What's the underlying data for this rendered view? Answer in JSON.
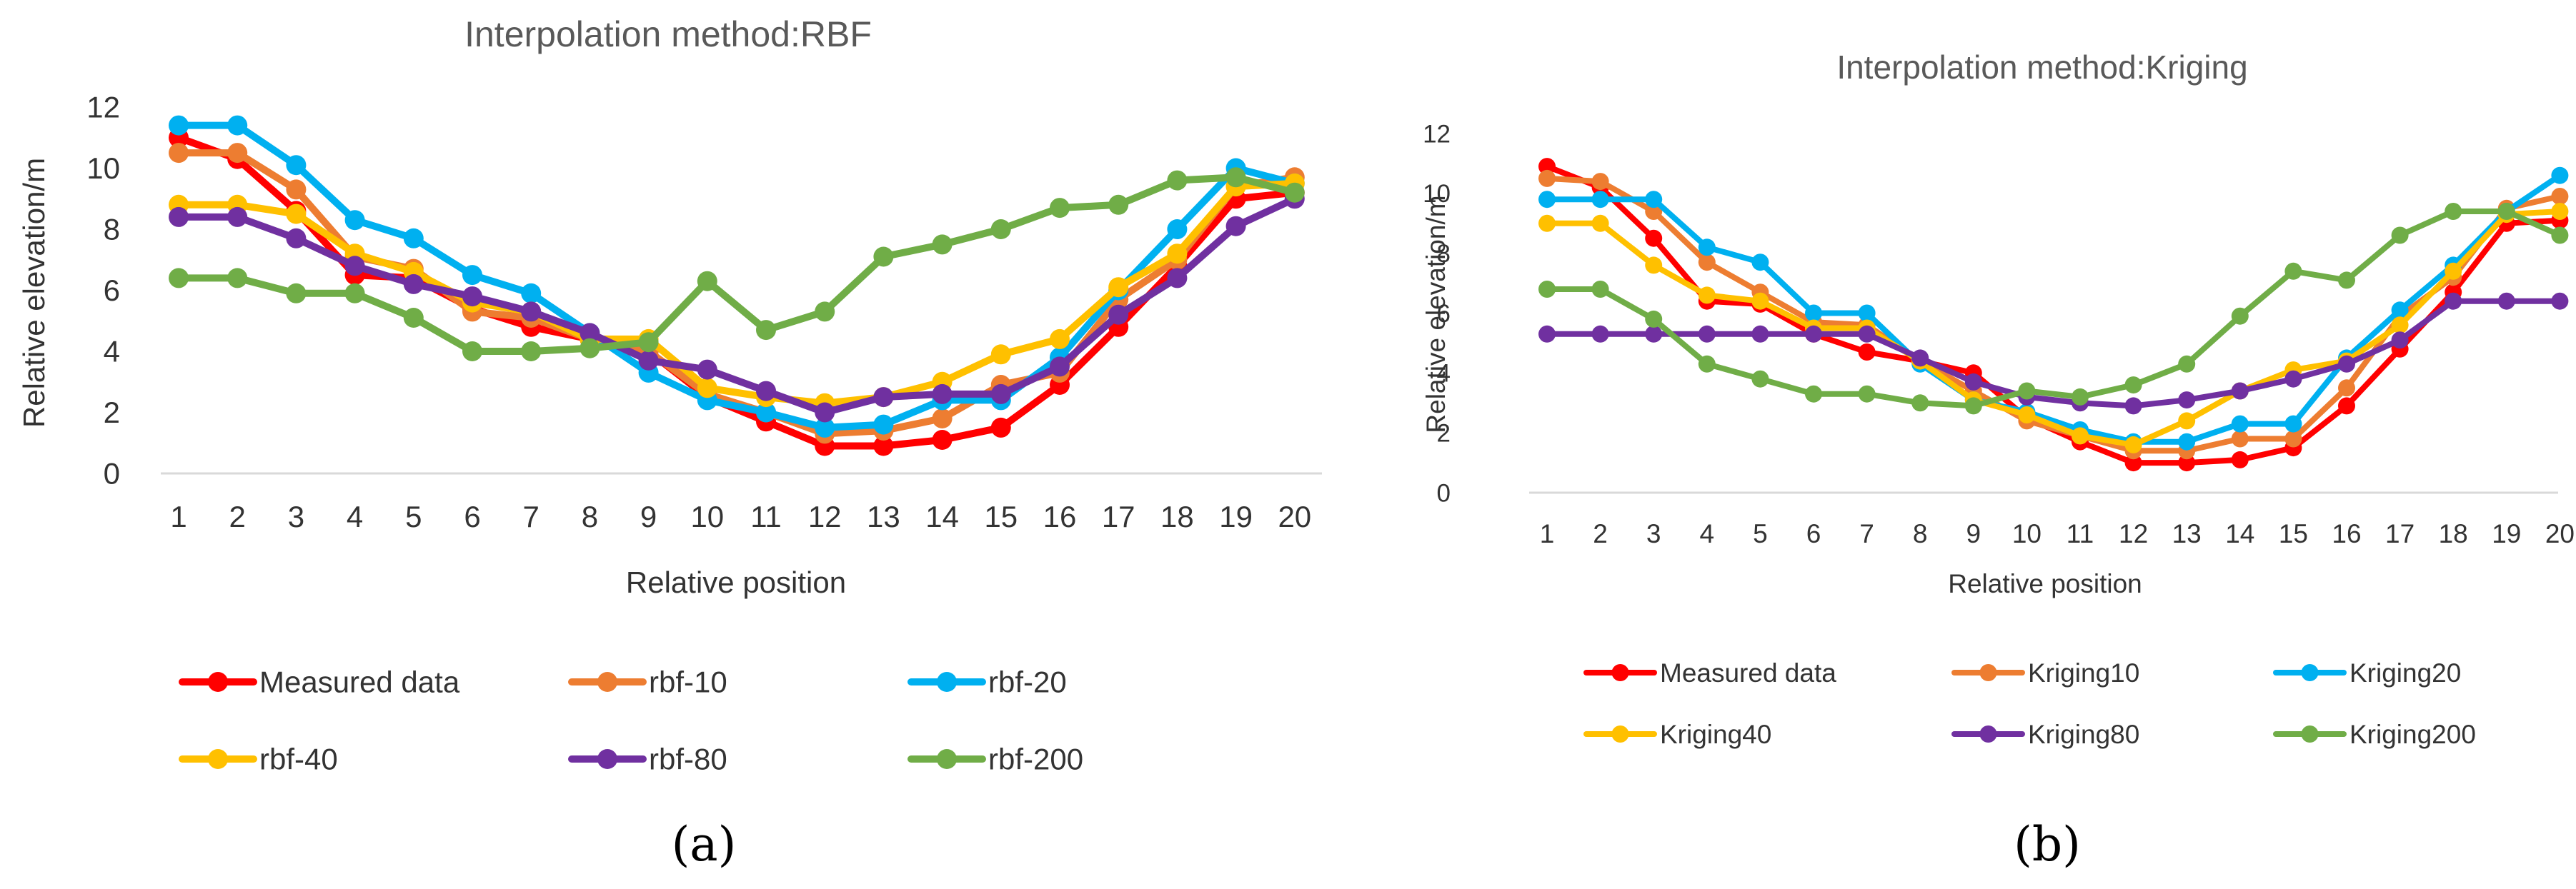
{
  "chart_data": [
    {
      "type": "line",
      "title": "Interpolation method:RBF",
      "xlabel": "Relative position",
      "ylabel": "Relative elevation/m",
      "ylim": [
        0,
        12
      ],
      "yticks": [
        "0",
        "2",
        "4",
        "6",
        "8",
        "10",
        "12"
      ],
      "categories": [
        "1",
        "2",
        "3",
        "4",
        "5",
        "6",
        "7",
        "8",
        "9",
        "10",
        "11",
        "12",
        "13",
        "14",
        "15",
        "16",
        "17",
        "18",
        "19",
        "20"
      ],
      "grid": false,
      "legend": "bottom",
      "panel_label": "(a)",
      "series": [
        {
          "name": "Measured data",
          "color": "#FF0000",
          "values": [
            11.0,
            10.3,
            8.6,
            6.5,
            6.4,
            5.4,
            4.8,
            4.4,
            4.0,
            2.5,
            1.7,
            0.9,
            0.9,
            1.1,
            1.5,
            2.9,
            4.8,
            6.8,
            9.0,
            9.2
          ]
        },
        {
          "name": "rbf-10",
          "color": "#ED7D31",
          "values": [
            10.5,
            10.5,
            9.3,
            7.1,
            6.7,
            5.3,
            5.1,
            4.4,
            4.0,
            2.6,
            2.0,
            1.3,
            1.4,
            1.8,
            2.9,
            3.3,
            5.7,
            7.0,
            9.4,
            9.7
          ]
        },
        {
          "name": "rbf-20",
          "color": "#00B0F0",
          "values": [
            11.4,
            11.4,
            10.1,
            8.3,
            7.7,
            6.5,
            5.9,
            4.6,
            3.3,
            2.4,
            2.0,
            1.5,
            1.6,
            2.4,
            2.4,
            3.8,
            6.0,
            8.0,
            10.0,
            9.5
          ]
        },
        {
          "name": "rbf-40",
          "color": "#FFC000",
          "values": [
            8.8,
            8.8,
            8.5,
            7.2,
            6.6,
            5.6,
            5.3,
            4.4,
            4.4,
            2.8,
            2.5,
            2.3,
            2.5,
            3.0,
            3.9,
            4.4,
            6.1,
            7.2,
            9.4,
            9.5
          ]
        },
        {
          "name": "rbf-80",
          "color": "#7030A0",
          "values": [
            8.4,
            8.4,
            7.7,
            6.8,
            6.2,
            5.8,
            5.3,
            4.6,
            3.7,
            3.4,
            2.7,
            2.0,
            2.5,
            2.6,
            2.6,
            3.5,
            5.2,
            6.4,
            8.1,
            9.0
          ]
        },
        {
          "name": "rbf-200",
          "color": "#70AD47",
          "values": [
            6.4,
            6.4,
            5.9,
            5.9,
            5.1,
            4.0,
            4.0,
            4.1,
            4.3,
            6.3,
            4.7,
            5.3,
            7.1,
            7.5,
            8.0,
            8.7,
            8.8,
            9.6,
            9.7,
            9.2
          ]
        }
      ]
    },
    {
      "type": "line",
      "title": "Interpolation method:Kriging",
      "xlabel": "Relative position",
      "ylabel": "Relative elevation/m",
      "ylim": [
        0,
        12
      ],
      "yticks": [
        "0",
        "2",
        "4",
        "6",
        "8",
        "10",
        "12"
      ],
      "categories": [
        "1",
        "2",
        "3",
        "4",
        "5",
        "6",
        "7",
        "8",
        "9",
        "10",
        "11",
        "12",
        "13",
        "14",
        "15",
        "16",
        "17",
        "18",
        "19",
        "20"
      ],
      "grid": false,
      "legend": "bottom",
      "panel_label": "(b)",
      "series": [
        {
          "name": "Measured data",
          "color": "#FF0000",
          "values": [
            10.9,
            10.2,
            8.5,
            6.4,
            6.3,
            5.3,
            4.7,
            4.4,
            4.0,
            2.5,
            1.7,
            1.0,
            1.0,
            1.1,
            1.5,
            2.9,
            4.8,
            6.7,
            9.0,
            9.1
          ]
        },
        {
          "name": "Kriging10",
          "color": "#ED7D31",
          "values": [
            10.5,
            10.4,
            9.4,
            7.7,
            6.7,
            5.7,
            5.6,
            4.4,
            3.4,
            2.4,
            1.9,
            1.4,
            1.4,
            1.8,
            1.8,
            3.5,
            5.9,
            7.2,
            9.5,
            9.9
          ]
        },
        {
          "name": "Kriging20",
          "color": "#00B0F0",
          "values": [
            9.8,
            9.8,
            9.8,
            8.2,
            7.7,
            6.0,
            6.0,
            4.3,
            3.1,
            2.7,
            2.1,
            1.7,
            1.7,
            2.3,
            2.3,
            4.5,
            6.1,
            7.6,
            9.4,
            10.6
          ]
        },
        {
          "name": "Kriging40",
          "color": "#FFC000",
          "values": [
            9.0,
            9.0,
            7.6,
            6.6,
            6.4,
            5.5,
            5.5,
            4.4,
            3.1,
            2.6,
            1.9,
            1.6,
            2.4,
            3.4,
            4.1,
            4.4,
            5.6,
            7.4,
            9.3,
            9.4
          ]
        },
        {
          "name": "Kriging80",
          "color": "#7030A0",
          "values": [
            5.3,
            5.3,
            5.3,
            5.3,
            5.3,
            5.3,
            5.3,
            4.5,
            3.7,
            3.2,
            3.0,
            2.9,
            3.1,
            3.4,
            3.8,
            4.3,
            5.1,
            6.4,
            6.4,
            6.4
          ]
        },
        {
          "name": "Kriging200",
          "color": "#70AD47",
          "values": [
            6.8,
            6.8,
            5.8,
            4.3,
            3.8,
            3.3,
            3.3,
            3.0,
            2.9,
            3.4,
            3.2,
            3.6,
            4.3,
            5.9,
            7.4,
            7.1,
            8.6,
            9.4,
            9.4,
            8.6
          ]
        }
      ]
    }
  ]
}
